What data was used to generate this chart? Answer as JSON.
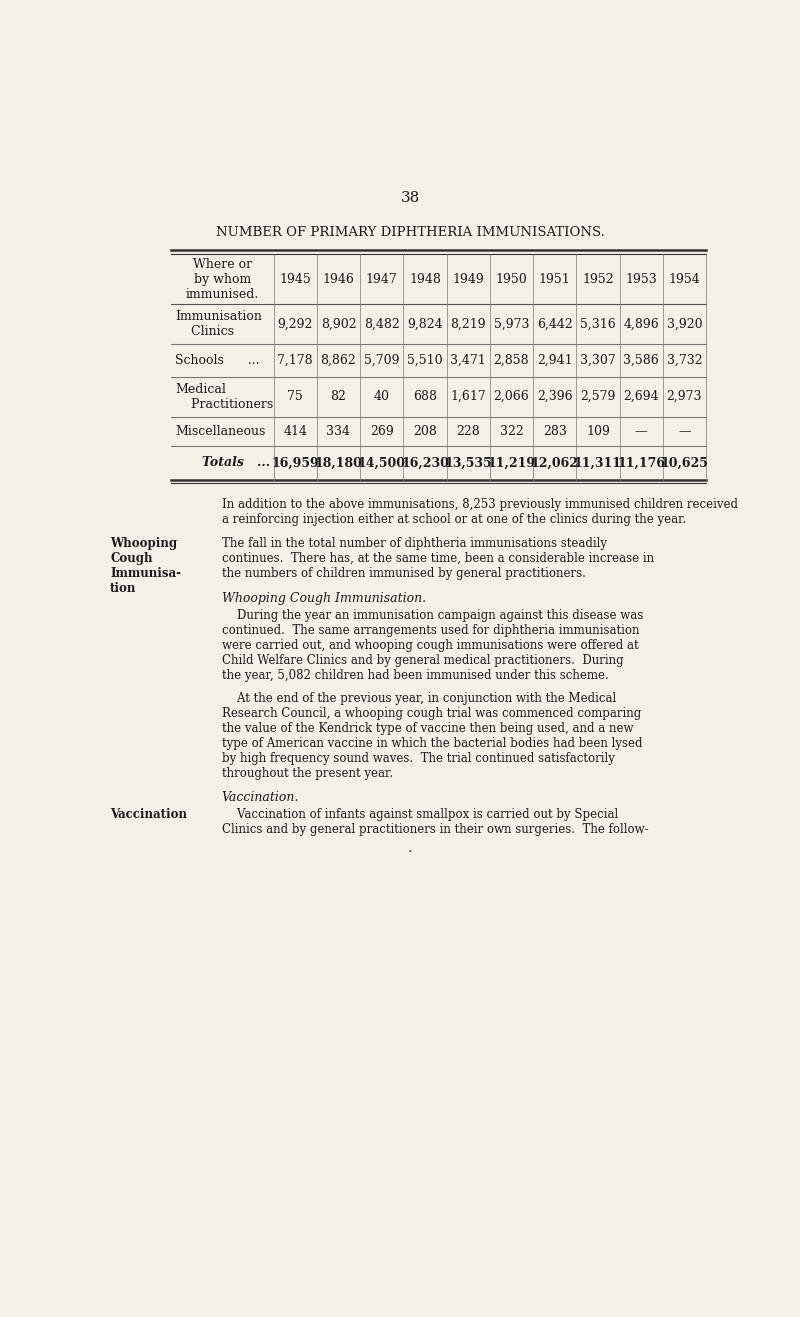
{
  "page_number": "38",
  "title": "NUMBER OF PRIMARY DIPHTHERIA IMMUNISATIONS.",
  "background_color": "#f5f0e8",
  "text_color": "#1a1a1a",
  "table": {
    "header_col": "Where or\nby whom\nimmunised.",
    "years": [
      "1945",
      "1946",
      "1947",
      "1948",
      "1949",
      "1950",
      "1951",
      "1952",
      "1953",
      "1954"
    ],
    "rows": [
      {
        "label": "Immunisation\n    Clinics",
        "values": [
          "9,292",
          "8,902",
          "8,482",
          "9,824",
          "8,219",
          "5,973",
          "6,442",
          "5,316",
          "4,896",
          "3,920"
        ]
      },
      {
        "label": "Schools      ...",
        "values": [
          "7,178",
          "8,862",
          "5,709",
          "5,510",
          "3,471",
          "2,858",
          "2,941",
          "3,307",
          "3,586",
          "3,732"
        ]
      },
      {
        "label": "Medical\n    Practitioners",
        "values": [
          "75",
          "82",
          "40",
          "688",
          "1,617",
          "2,066",
          "2,396",
          "2,579",
          "2,694",
          "2,973"
        ]
      },
      {
        "label": "Miscellaneous",
        "values": [
          "414",
          "334",
          "269",
          "208",
          "228",
          "322",
          "283",
          "109",
          "—",
          "—"
        ]
      },
      {
        "label": "Totals   ...",
        "values": [
          "16,959",
          "18,180",
          "14,500",
          "16,230",
          "13,535",
          "11,219",
          "12,062",
          "11,311",
          "11,176",
          "10,625"
        ],
        "is_total": true
      }
    ]
  },
  "note_text": "In addition to the above immunisations, 8,253 previously immunised children received\na reinforcing injection either at school or at one of the clinics during the year.",
  "para1": "The fall in the total number of diphtheria immunisations steadily\ncontinues.  There has, at the same time, been a considerable increase in\nthe numbers of children immunised by general practitioners.",
  "heading1": "Whooping Cough Immunisation.",
  "para2": "    During the year an immunisation campaign against this disease was\ncontinued.  The same arrangements used for diphtheria immunisation\nwere carried out, and whooping cough immunisations were offered at\nChild Welfare Clinics and by general medical practitioners.  During\nthe year, 5,082 children had been immunised under this scheme.",
  "para3": "    At the end of the previous year, in conjunction with the Medical\nResearch Council, a whooping cough trial was commenced comparing\nthe value of the Kendrick type of vaccine then being used, and a new\ntype of American vaccine in which the bacterial bodies had been lysed\nby high frequency sound waves.  The trial continued satisfactorily\nthroughout the present year.",
  "heading2": "Vaccination.",
  "para4": "    Vaccination of infants against smallpox is carried out by Special\nClinics and by general practitioners in their own surgeries.  The follow-",
  "sidebar1": "Whooping\nCough\nImmunisa-\ntion",
  "sidebar2": "Vaccination"
}
